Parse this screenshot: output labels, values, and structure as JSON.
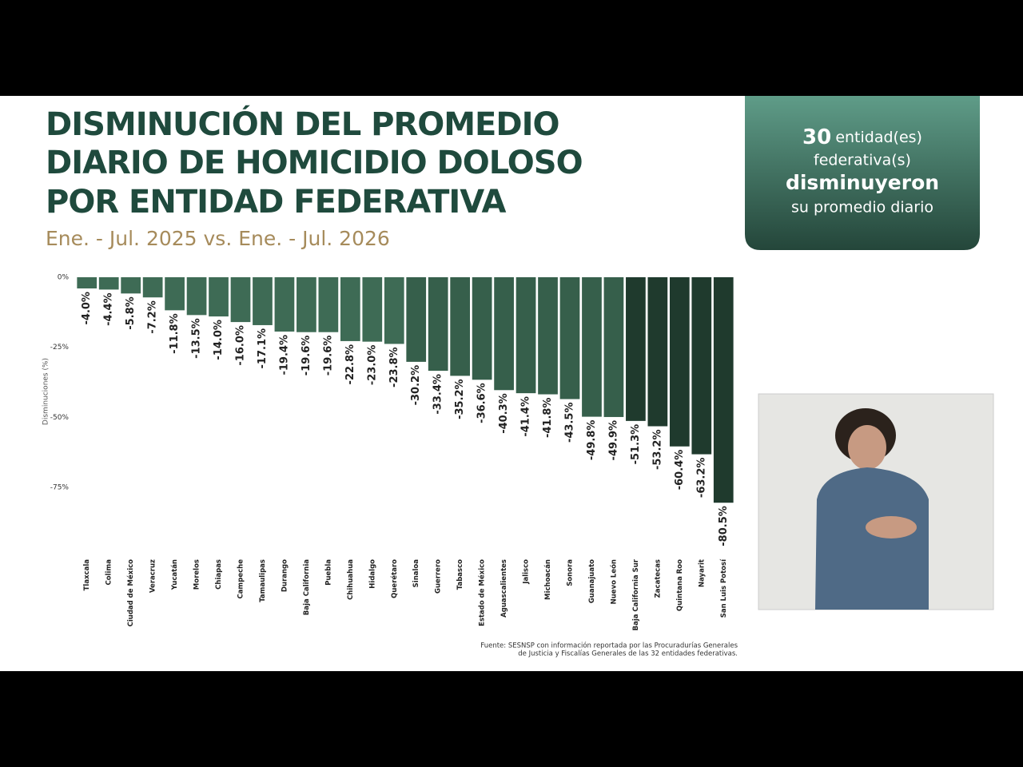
{
  "chart_data": {
    "type": "bar",
    "title": [
      "DISMINUCIÓN DEL PROMEDIO",
      "DIARIO DE HOMICIDIO DOLOSO",
      "POR ENTIDAD FEDERATIVA"
    ],
    "subtitle": "Ene. - Jul. 2025 vs. Ene. - Jul. 2026",
    "y_label": "Disminuciones (%)",
    "categories": [
      "Tlaxcala",
      "Colima",
      "Ciudad de México",
      "Veracruz",
      "Yucatán",
      "Morelos",
      "Chiapas",
      "Campeche",
      "Tamaulipas",
      "Durango",
      "Baja California",
      "Puebla",
      "Chihuahua",
      "Hidalgo",
      "Querétaro",
      "Sinaloa",
      "Guerrero",
      "Tabasco",
      "Estado de México",
      "Aguascalientes",
      "Jalisco",
      "Michoacán",
      "Sonora",
      "Guanajuato",
      "Nuevo León",
      "Baja California Sur",
      "Zacatecas",
      "Quintana Roo",
      "Nayarit",
      "San Luis Potosí"
    ],
    "values": [
      -4.0,
      -4.4,
      -5.8,
      -7.2,
      -11.8,
      -13.5,
      -14.0,
      -16.0,
      -17.1,
      -19.4,
      -19.6,
      -19.6,
      -22.8,
      -23.0,
      -23.8,
      -30.2,
      -33.4,
      -35.2,
      -36.6,
      -40.3,
      -41.4,
      -41.8,
      -43.5,
      -49.8,
      -49.9,
      -51.3,
      -53.2,
      -60.4,
      -63.2,
      -80.5
    ],
    "value_labels": [
      "-4.0%",
      "-4.4%",
      "-5.8%",
      "-7.2%",
      "-11.8%",
      "-13.5%",
      "-14.0%",
      "-16.0%",
      "-17.1%",
      "-19.4%",
      "-19.6%",
      "-19.6%",
      "-22.8%",
      "-23.0%",
      "-23.8%",
      "-30.2%",
      "-33.4%",
      "-35.2%",
      "-36.6%",
      "-40.3%",
      "-41.4%",
      "-41.8%",
      "-43.5%",
      "-49.8%",
      "-49.9%",
      "-51.3%",
      "-53.2%",
      "-60.4%",
      "-63.2%",
      "-80.5%"
    ],
    "colors": [
      "#3e6b55",
      "#3e6b55",
      "#3e6b55",
      "#3e6b55",
      "#3e6b55",
      "#3e6b55",
      "#3e6b55",
      "#3e6b55",
      "#3e6b55",
      "#3e6b55",
      "#3e6b55",
      "#3e6b55",
      "#3e6b55",
      "#3e6b55",
      "#3e6b55",
      "#365f4b",
      "#365f4b",
      "#365f4b",
      "#365f4b",
      "#365f4b",
      "#365f4b",
      "#365f4b",
      "#365f4b",
      "#365f4b",
      "#365f4b",
      "#1f3a2d",
      "#1f3a2d",
      "#1f3a2d",
      "#1f3a2d",
      "#1f3a2d"
    ],
    "ylim": [
      -85,
      0
    ],
    "yticks": [
      {
        "value": 0,
        "label": "0%"
      },
      {
        "value": -25,
        "label": "-25%"
      },
      {
        "value": -50,
        "label": "-50%"
      },
      {
        "value": -75,
        "label": "-75%"
      }
    ],
    "source": [
      "Fuente: SESNSP con información reportada por las Procuradurías Generales",
      "de Justicia y Fiscalías Generales de las 32 entidades federativas."
    ]
  },
  "callout": {
    "number": "30",
    "lines": [
      "entidad(es)",
      "federativa(s)",
      "disminuyeron",
      "su promedio diario"
    ]
  }
}
